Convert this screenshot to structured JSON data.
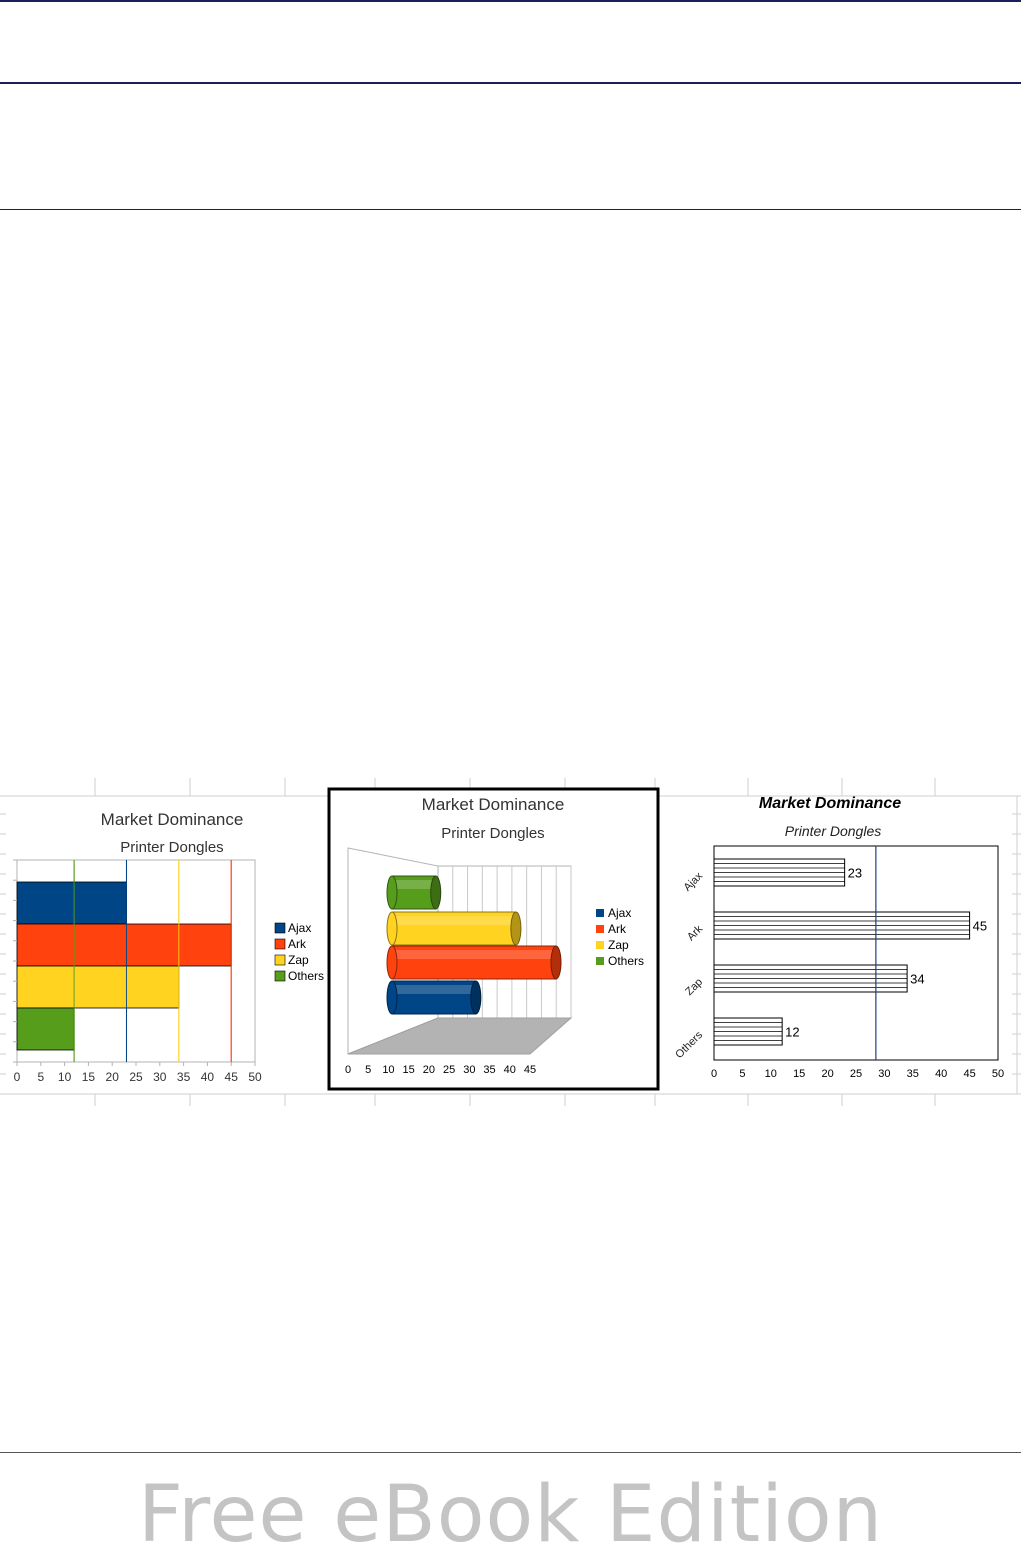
{
  "footer": {
    "watermark": "Free eBook Edition"
  },
  "colors": {
    "Ajax": "#004586",
    "Ark": "#ff420e",
    "Zap": "#ffd320",
    "Others": "#579d1c"
  },
  "chart_data": [
    {
      "type": "bar",
      "orientation": "horizontal",
      "title": "Market Dominance",
      "subtitle": "Printer Dongles",
      "categories": [
        "Ajax",
        "Ark",
        "Zap",
        "Others"
      ],
      "values": [
        23,
        45,
        34,
        12
      ],
      "xlim": [
        0,
        50
      ],
      "xticks": [
        0,
        5,
        10,
        15,
        20,
        25,
        30,
        35,
        40,
        45,
        50
      ],
      "legend": {
        "position": "right",
        "entries": [
          "Ajax",
          "Ark",
          "Zap",
          "Others"
        ]
      }
    },
    {
      "type": "bar",
      "orientation": "horizontal",
      "style": "3d-cylinder",
      "title": "Market Dominance",
      "subtitle": "Printer Dongles",
      "categories": [
        "Others",
        "Zap",
        "Ark",
        "Ajax"
      ],
      "values": [
        12,
        34,
        45,
        23
      ],
      "xlim": [
        0,
        45
      ],
      "xticks": [
        0,
        5,
        10,
        15,
        20,
        25,
        30,
        35,
        40,
        45
      ],
      "legend": {
        "position": "right",
        "entries": [
          "Ajax",
          "Ark",
          "Zap",
          "Others"
        ]
      }
    },
    {
      "type": "bar",
      "orientation": "horizontal",
      "style": "hatched",
      "title": "Market Dominance",
      "subtitle": "Printer Dongles",
      "categories": [
        "Ajax",
        "Ark",
        "Zap",
        "Others"
      ],
      "values": [
        23,
        45,
        34,
        12
      ],
      "data_labels": [
        "23",
        "45",
        "34",
        "12"
      ],
      "mean_line": 28.5,
      "xlim": [
        0,
        50
      ],
      "xticks": [
        0,
        5,
        10,
        15,
        20,
        25,
        30,
        35,
        40,
        45,
        50
      ]
    }
  ]
}
